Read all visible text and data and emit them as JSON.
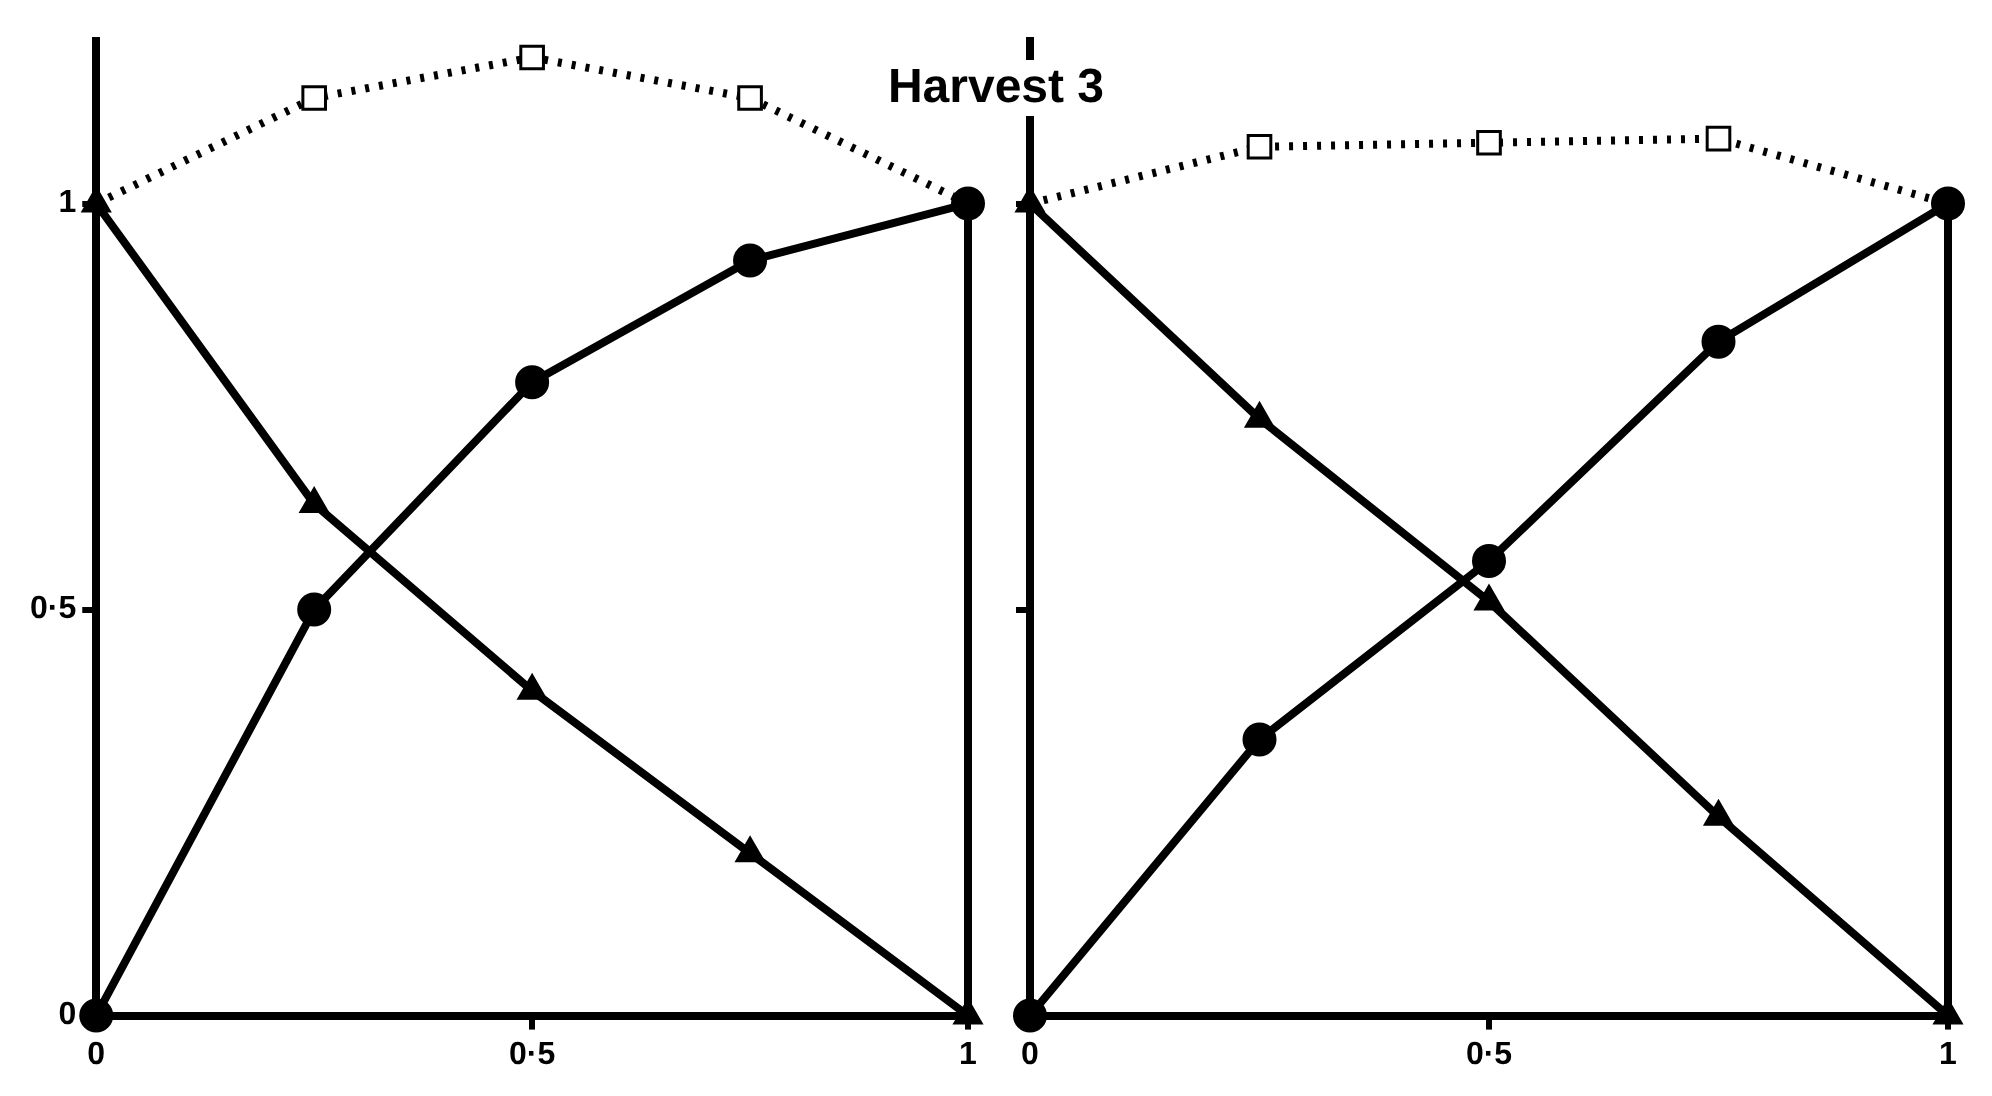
{
  "chart_data": [
    {
      "type": "line",
      "title": "Harvest 3",
      "x": [
        0,
        0.25,
        0.5,
        0.75,
        1
      ],
      "xlim": [
        0,
        1
      ],
      "ylim": [
        0,
        1.2
      ],
      "xticks": [
        {
          "value": 0,
          "label": "0"
        },
        {
          "value": 0.5,
          "label": "0·5"
        },
        {
          "value": 1,
          "label": "1"
        }
      ],
      "yticks": [
        0,
        {
          "value": 0.5,
          "label": "0·5"
        },
        1
      ],
      "grid": false,
      "legend": false,
      "series": [
        {
          "color": "#000000",
          "marker": "circle",
          "line_style": "solid",
          "values": [
            0,
            0.5,
            0.78,
            0.93,
            1
          ]
        },
        {
          "color": "#000000",
          "marker": "triangle",
          "line_style": "solid",
          "values": [
            1,
            0.63,
            0.4,
            0.2,
            0
          ]
        },
        {
          "color": "#000000",
          "marker": "square",
          "line_style": "dotted",
          "values": [
            1,
            1.13,
            1.18,
            1.13,
            1
          ]
        }
      ]
    },
    {
      "type": "line",
      "x": [
        0,
        0.25,
        0.5,
        0.75,
        1
      ],
      "xlim": [
        0,
        1
      ],
      "ylim": [
        0,
        1.2
      ],
      "xticks": [
        {
          "value": 0,
          "label": "0"
        },
        {
          "value": 0.5,
          "label": "0·5"
        },
        {
          "value": 1,
          "label": "1"
        }
      ],
      "yticks": [
        {
          "value": 0,
          "label": null
        },
        {
          "value": 0.5,
          "label": null
        },
        {
          "value": 1,
          "label": null
        }
      ],
      "tick_labels": "x",
      "grid": false,
      "legend": false,
      "series": [
        {
          "color": "#000000",
          "marker": "circle",
          "line_style": "solid",
          "values": [
            0,
            0.34,
            0.56,
            0.83,
            1
          ]
        },
        {
          "color": "#000000",
          "marker": "triangle",
          "line_style": "solid",
          "values": [
            1,
            0.735,
            0.51,
            0.245,
            0
          ]
        },
        {
          "color": "#000000",
          "marker": "square",
          "line_style": "dotted",
          "values": [
            1,
            1.07,
            1.075,
            1.08,
            1
          ]
        }
      ]
    }
  ]
}
